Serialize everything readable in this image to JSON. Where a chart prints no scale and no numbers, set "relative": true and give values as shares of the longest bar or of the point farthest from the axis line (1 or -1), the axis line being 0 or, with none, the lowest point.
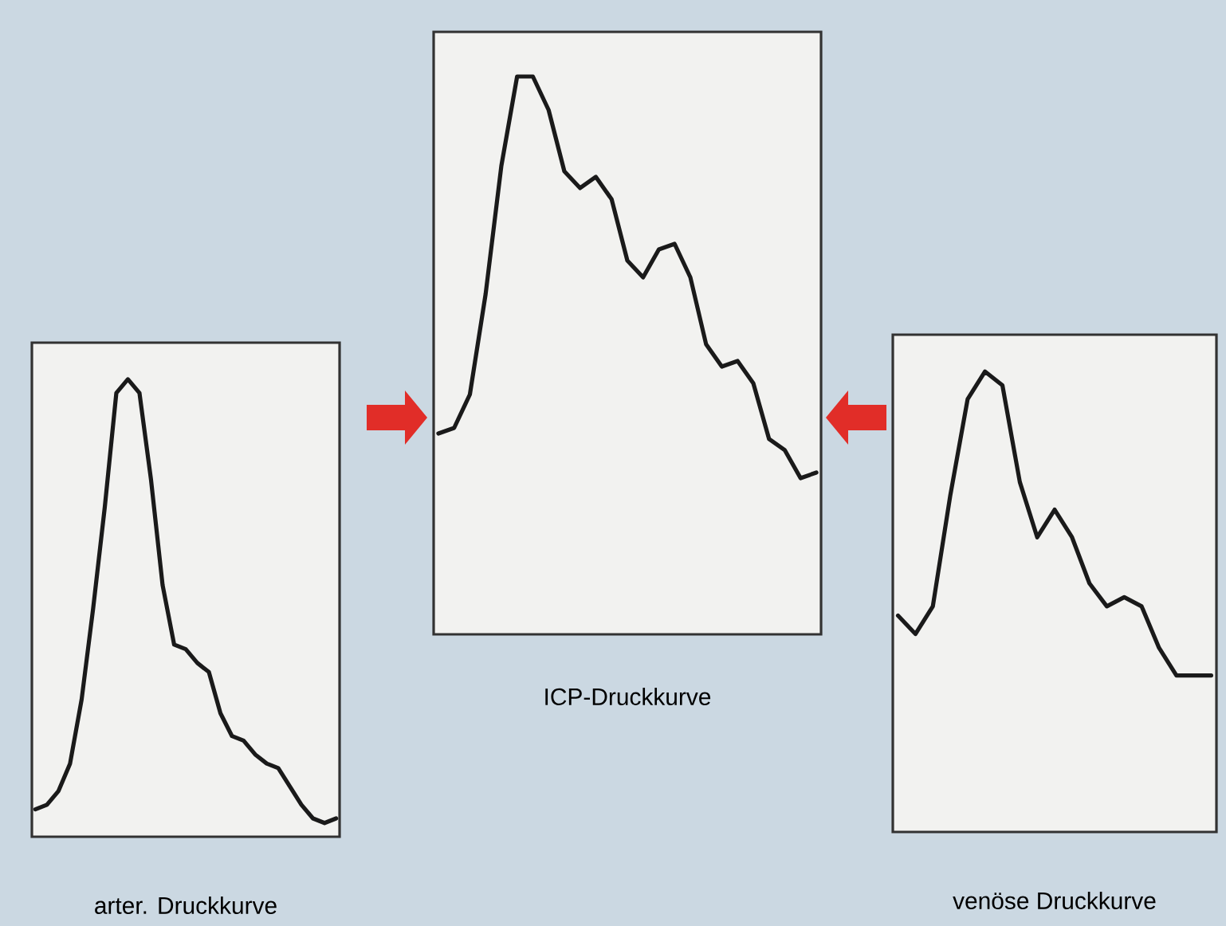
{
  "chart_data": [
    {
      "type": "line",
      "relative": true,
      "xlabel": "arter. Druckkurve",
      "tick_labels": false,
      "categories": [
        null,
        null,
        null,
        null,
        null,
        null,
        null,
        null,
        null,
        null,
        null,
        null,
        null,
        null,
        null,
        null,
        null,
        null,
        null,
        null,
        null,
        null,
        null,
        null,
        null,
        null,
        null
      ],
      "series": [
        {
          "color": "#1a1a1a",
          "values": [
            0.06,
            0.07,
            0.1,
            0.16,
            0.3,
            0.5,
            0.72,
            0.97,
            1,
            0.97,
            0.78,
            0.55,
            0.42,
            0.41,
            0.38,
            0.36,
            0.27,
            0.22,
            0.21,
            0.18,
            0.16,
            0.15,
            0.11,
            0.07,
            0.04,
            0.03,
            0.04
          ]
        }
      ]
    },
    {
      "type": "line",
      "relative": true,
      "xlabel": "ICP-Druckkurve",
      "tick_labels": false,
      "categories": [
        null,
        null,
        null,
        null,
        null,
        null,
        null,
        null,
        null,
        null,
        null,
        null,
        null,
        null,
        null,
        null,
        null,
        null,
        null,
        null,
        null,
        null,
        null,
        null,
        null
      ],
      "series": [
        {
          "color": "#1a1a1a",
          "values": [
            0.36,
            0.37,
            0.43,
            0.61,
            0.84,
            1,
            1,
            0.94,
            0.83,
            0.8,
            0.82,
            0.78,
            0.67,
            0.64,
            0.69,
            0.7,
            0.64,
            0.52,
            0.48,
            0.49,
            0.45,
            0.35,
            0.33,
            0.28,
            0.29
          ]
        }
      ]
    },
    {
      "type": "line",
      "relative": true,
      "xlabel": "venöse Druckkurve",
      "tick_labels": false,
      "categories": [
        null,
        null,
        null,
        null,
        null,
        null,
        null,
        null,
        null,
        null,
        null,
        null,
        null,
        null,
        null,
        null,
        null,
        null,
        null
      ],
      "series": [
        {
          "color": "#1a1a1a",
          "values": [
            0.47,
            0.43,
            0.49,
            0.73,
            0.94,
            1,
            0.97,
            0.76,
            0.64,
            0.7,
            0.64,
            0.54,
            0.49,
            0.51,
            0.49,
            0.4,
            0.34,
            0.34,
            0.34
          ]
        }
      ]
    }
  ]
}
